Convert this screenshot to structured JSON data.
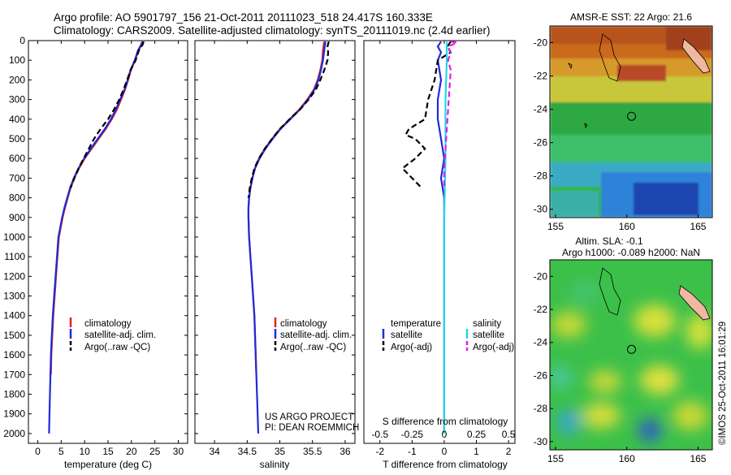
{
  "title": {
    "line1": "Argo profile: AO 5901797_156 21-Oct-2011 20111023_518 24.417S 160.333E",
    "line2": "Climatology: CARS2009. Satellite-adjusted climatology: synTS_20111019.nc (2.4d earlier)"
  },
  "colors": {
    "climatology": "#e02020",
    "satellite": "#1f2bd8",
    "argo": "#000000",
    "satellite_salinity": "#22d8e8",
    "argo_salinity": "#e020e0"
  },
  "chart_data": [
    {
      "type": "line",
      "name": "temperature-profile",
      "xlabel": "temperature (deg C)",
      "xlim": [
        -2,
        32
      ],
      "ylim": [
        2050,
        0
      ],
      "xticks": [
        0,
        5,
        10,
        15,
        20,
        25,
        30
      ],
      "yticks": [
        0,
        100,
        200,
        300,
        400,
        500,
        600,
        700,
        800,
        900,
        1000,
        1100,
        1200,
        1300,
        1400,
        1500,
        1600,
        1700,
        1800,
        1900,
        2000
      ],
      "legend": [
        "climatology",
        "satellite-adj. clim.",
        "Argo(..raw -QC)"
      ],
      "legend_position": "center-right",
      "series": [
        {
          "name": "climatology",
          "color": "#e02020",
          "style": "solid",
          "points": [
            [
              22.4,
              5
            ],
            [
              22.2,
              20
            ],
            [
              21.5,
              50
            ],
            [
              20.8,
              100
            ],
            [
              19.9,
              150
            ],
            [
              19.3,
              200
            ],
            [
              18.6,
              250
            ],
            [
              17.8,
              300
            ],
            [
              16.9,
              350
            ],
            [
              15.8,
              400
            ],
            [
              14.5,
              450
            ],
            [
              13.0,
              500
            ],
            [
              11.5,
              550
            ],
            [
              10.0,
              600
            ],
            [
              8.8,
              650
            ],
            [
              7.8,
              700
            ],
            [
              7.0,
              750
            ],
            [
              6.4,
              800
            ],
            [
              5.8,
              850
            ],
            [
              5.3,
              900
            ],
            [
              4.9,
              950
            ],
            [
              4.5,
              1000
            ],
            [
              4.2,
              1100
            ],
            [
              3.9,
              1200
            ],
            [
              3.6,
              1300
            ],
            [
              3.3,
              1400
            ],
            [
              3.1,
              1500
            ],
            [
              2.9,
              1600
            ],
            [
              2.8,
              1700
            ]
          ]
        },
        {
          "name": "satellite-adj. clim.",
          "color": "#1f2bd8",
          "style": "solid",
          "points": [
            [
              22.3,
              5
            ],
            [
              22.1,
              20
            ],
            [
              21.4,
              50
            ],
            [
              20.7,
              100
            ],
            [
              19.8,
              150
            ],
            [
              19.2,
              200
            ],
            [
              18.5,
              250
            ],
            [
              17.6,
              300
            ],
            [
              16.7,
              350
            ],
            [
              15.6,
              400
            ],
            [
              14.3,
              450
            ],
            [
              12.8,
              500
            ],
            [
              11.3,
              550
            ],
            [
              9.9,
              600
            ],
            [
              8.7,
              650
            ],
            [
              7.7,
              700
            ],
            [
              6.9,
              750
            ],
            [
              6.3,
              800
            ],
            [
              5.7,
              850
            ],
            [
              5.2,
              900
            ],
            [
              4.8,
              950
            ],
            [
              4.4,
              1000
            ],
            [
              4.1,
              1100
            ],
            [
              3.8,
              1200
            ],
            [
              3.5,
              1300
            ],
            [
              3.2,
              1400
            ],
            [
              3.0,
              1500
            ],
            [
              2.8,
              1600
            ],
            [
              2.7,
              1700
            ],
            [
              2.6,
              1800
            ],
            [
              2.5,
              1900
            ],
            [
              2.4,
              2000
            ]
          ]
        },
        {
          "name": "Argo(..raw -QC)",
          "color": "#000000",
          "style": "dashed",
          "points": [
            [
              22.6,
              5
            ],
            [
              22.4,
              20
            ],
            [
              21.6,
              50
            ],
            [
              20.9,
              100
            ],
            [
              19.8,
              150
            ],
            [
              19.1,
              200
            ],
            [
              18.3,
              250
            ],
            [
              17.4,
              300
            ],
            [
              16.3,
              350
            ],
            [
              15.0,
              400
            ],
            [
              13.4,
              450
            ],
            [
              12.0,
              500
            ],
            [
              10.9,
              550
            ],
            [
              9.8,
              600
            ],
            [
              8.7,
              650
            ],
            [
              7.8,
              700
            ],
            [
              7.0,
              750
            ]
          ]
        }
      ]
    },
    {
      "type": "line",
      "name": "salinity-profile",
      "xlabel": "salinity",
      "xlim": [
        33.7,
        36.15
      ],
      "ylim": [
        2050,
        0
      ],
      "xticks": [
        34,
        34.5,
        35,
        35.5,
        36
      ],
      "legend": [
        "climatology",
        "satellite-adj. clim.",
        "Argo(..raw -QC)"
      ],
      "legend_position": "center-right",
      "annotation": [
        "US ARGO PROJECT",
        "PI: DEAN ROEMMICH"
      ],
      "series": [
        {
          "name": "climatology",
          "color": "#e02020",
          "style": "solid",
          "points": [
            [
              35.68,
              5
            ],
            [
              35.66,
              50
            ],
            [
              35.65,
              100
            ],
            [
              35.62,
              150
            ],
            [
              35.58,
              200
            ],
            [
              35.52,
              250
            ],
            [
              35.42,
              300
            ],
            [
              35.3,
              350
            ],
            [
              35.15,
              400
            ],
            [
              35.0,
              450
            ],
            [
              34.88,
              500
            ],
            [
              34.77,
              550
            ],
            [
              34.68,
              600
            ],
            [
              34.62,
              650
            ],
            [
              34.58,
              700
            ],
            [
              34.55,
              750
            ],
            [
              34.53,
              800
            ],
            [
              34.52,
              850
            ],
            [
              34.52,
              900
            ],
            [
              34.53,
              1000
            ],
            [
              34.55,
              1100
            ],
            [
              34.57,
              1200
            ],
            [
              34.59,
              1300
            ],
            [
              34.61,
              1400
            ],
            [
              34.62,
              1500
            ],
            [
              34.63,
              1600
            ],
            [
              34.64,
              1700
            ]
          ]
        },
        {
          "name": "satellite-adj. clim.",
          "color": "#1f2bd8",
          "style": "solid",
          "points": [
            [
              35.7,
              5
            ],
            [
              35.68,
              50
            ],
            [
              35.66,
              100
            ],
            [
              35.63,
              150
            ],
            [
              35.59,
              200
            ],
            [
              35.53,
              250
            ],
            [
              35.43,
              300
            ],
            [
              35.31,
              350
            ],
            [
              35.16,
              400
            ],
            [
              35.01,
              450
            ],
            [
              34.89,
              500
            ],
            [
              34.78,
              550
            ],
            [
              34.69,
              600
            ],
            [
              34.62,
              650
            ],
            [
              34.58,
              700
            ],
            [
              34.55,
              750
            ],
            [
              34.53,
              800
            ],
            [
              34.52,
              850
            ],
            [
              34.52,
              900
            ],
            [
              34.53,
              1000
            ],
            [
              34.55,
              1100
            ],
            [
              34.57,
              1200
            ],
            [
              34.59,
              1300
            ],
            [
              34.61,
              1400
            ],
            [
              34.62,
              1500
            ],
            [
              34.63,
              1600
            ],
            [
              34.64,
              1700
            ],
            [
              34.65,
              1800
            ],
            [
              34.66,
              1900
            ],
            [
              34.67,
              2000
            ]
          ]
        },
        {
          "name": "Argo(..raw -QC)",
          "color": "#000000",
          "style": "dashed",
          "points": [
            [
              35.75,
              5
            ],
            [
              35.73,
              30
            ],
            [
              35.74,
              60
            ],
            [
              35.73,
              100
            ],
            [
              35.68,
              150
            ],
            [
              35.62,
              200
            ],
            [
              35.55,
              250
            ],
            [
              35.44,
              300
            ],
            [
              35.31,
              350
            ],
            [
              35.15,
              400
            ],
            [
              35.0,
              450
            ],
            [
              34.88,
              500
            ],
            [
              34.77,
              550
            ],
            [
              34.68,
              600
            ],
            [
              34.61,
              650
            ],
            [
              34.57,
              700
            ],
            [
              34.54,
              750
            ],
            [
              34.52,
              800
            ]
          ]
        }
      ]
    },
    {
      "type": "line",
      "name": "difference-profile",
      "xlabel": "T difference from climatology",
      "xlabel_top": "S difference from climatology",
      "xlim": [
        -2.5,
        2.2
      ],
      "ylim": [
        2050,
        0
      ],
      "xticks": [
        -2,
        -1,
        0,
        1,
        2
      ],
      "xticks_top": [
        -0.5,
        -0.25,
        0,
        0.25,
        0.5
      ],
      "legend_left_title": "temperature",
      "legend_left": [
        "satellite",
        "Argo(-adj)"
      ],
      "legend_right_title": "salinity",
      "legend_right": [
        "satellite",
        "Argo(-adj)"
      ],
      "legend_position": "center",
      "series": [
        {
          "name": "T satellite",
          "color": "#1f2bd8",
          "style": "solid",
          "points": [
            [
              -0.1,
              5
            ],
            [
              -0.2,
              30
            ],
            [
              -0.1,
              60
            ],
            [
              -0.2,
              100
            ],
            [
              -0.1,
              200
            ],
            [
              -0.2,
              300
            ],
            [
              -0.2,
              400
            ],
            [
              -0.1,
              500
            ],
            [
              0.0,
              600
            ],
            [
              -0.1,
              700
            ],
            [
              0.0,
              800
            ],
            [
              0.0,
              1000
            ],
            [
              0.0,
              1200
            ],
            [
              0.0,
              1400
            ],
            [
              0.0,
              1600
            ],
            [
              0.0,
              1800
            ],
            [
              0.0,
              2000
            ]
          ]
        },
        {
          "name": "T Argo(-adj)",
          "color": "#000000",
          "style": "dashed",
          "points": [
            [
              0.2,
              5
            ],
            [
              0.1,
              30
            ],
            [
              0.2,
              60
            ],
            [
              -0.2,
              100
            ],
            [
              -0.3,
              200
            ],
            [
              -0.5,
              300
            ],
            [
              -0.6,
              400
            ],
            [
              -1.1,
              450
            ],
            [
              -1.2,
              480
            ],
            [
              -0.9,
              500
            ],
            [
              -0.6,
              550
            ],
            [
              -0.9,
              600
            ],
            [
              -1.3,
              650
            ],
            [
              -1.0,
              700
            ],
            [
              -0.7,
              750
            ]
          ]
        },
        {
          "name": "S satellite",
          "color": "#22d8e8",
          "style": "solid",
          "points": [
            [
              0.02,
              5
            ],
            [
              0.02,
              100
            ],
            [
              0.01,
              300
            ],
            [
              0.01,
              600
            ],
            [
              0.0,
              900
            ],
            [
              0.0,
              1200
            ],
            [
              0.0,
              1500
            ],
            [
              0.0,
              1800
            ],
            [
              0.0,
              2000
            ]
          ]
        },
        {
          "name": "S Argo(-adj)",
          "color": "#e020e0",
          "style": "dashed",
          "points": [
            [
              0.05,
              5
            ],
            [
              0.1,
              10
            ],
            [
              0.03,
              30
            ],
            [
              0.05,
              60
            ],
            [
              0.03,
              100
            ],
            [
              0.05,
              150
            ],
            [
              0.04,
              250
            ],
            [
              0.03,
              350
            ],
            [
              0.02,
              450
            ],
            [
              0.01,
              550
            ],
            [
              0.0,
              650
            ],
            [
              0.0,
              750
            ]
          ]
        }
      ]
    },
    {
      "type": "heatmap",
      "name": "sst-map",
      "title": "AMSR-E SST: 22 Argo: 21.6",
      "xlim": [
        154.6,
        166
      ],
      "ylim": [
        -30.5,
        -19
      ],
      "xticks": [
        155,
        160,
        165
      ],
      "yticks": [
        -20,
        -22,
        -24,
        -26,
        -28,
        -30
      ],
      "argo_position": {
        "lon": 160.33,
        "lat": -24.42
      }
    },
    {
      "type": "heatmap",
      "name": "sla-map",
      "title_line1": "Altim. SLA: -0.1",
      "title_line2": "Argo h1000: -0.089 h2000: NaN",
      "xlim": [
        154.6,
        166
      ],
      "ylim": [
        -30.5,
        -19
      ],
      "xticks": [
        155,
        160,
        165
      ],
      "yticks": [
        -20,
        -22,
        -24,
        -26,
        -28,
        -30
      ],
      "argo_position": {
        "lon": 160.33,
        "lat": -24.42
      }
    }
  ],
  "credit": "©IMOS 25-Oct-2011 16:01:29"
}
